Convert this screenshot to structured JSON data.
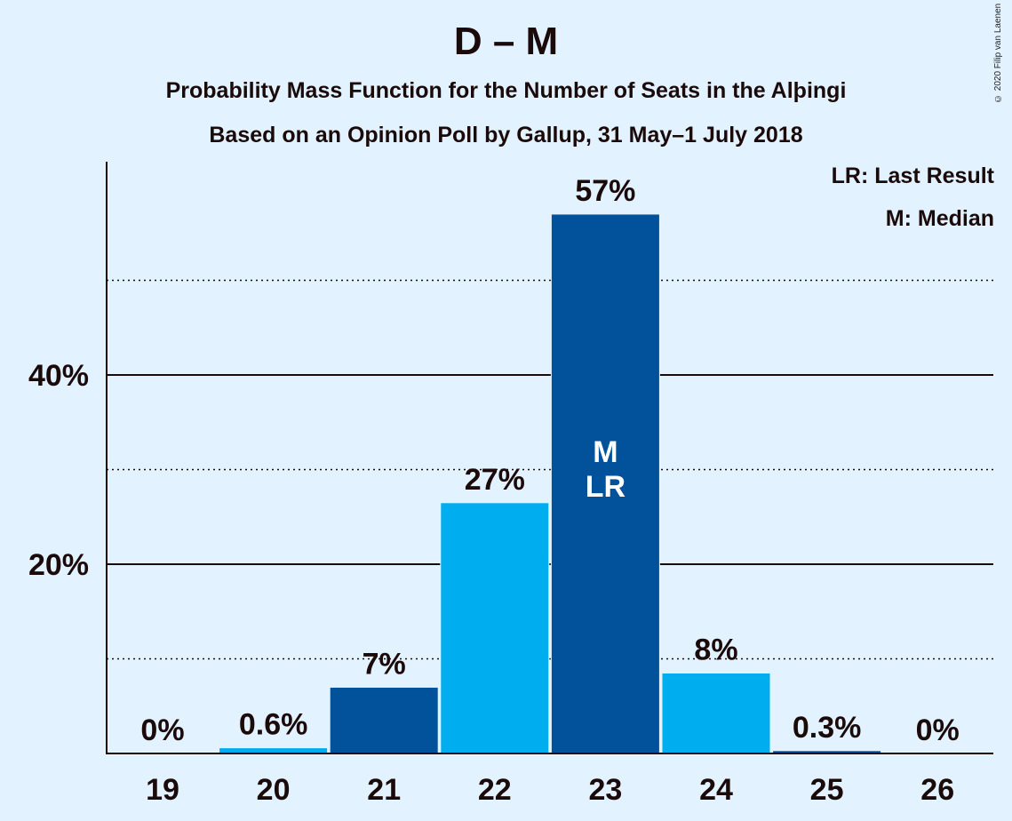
{
  "title": "D – M",
  "subtitle1": "Probability Mass Function for the Number of Seats in the Alþingi",
  "subtitle2": "Based on an Opinion Poll by Gallup, 31 May–1 July 2018",
  "copyright": "© 2020 Filip van Laenen",
  "legend": {
    "last_result": "LR: Last Result",
    "median": "M: Median"
  },
  "colors": {
    "background": "#e3f2ff",
    "dark_bar": "#01529b",
    "light_bar": "#00adef",
    "text": "#1a0a0a"
  },
  "chart_data": {
    "type": "bar",
    "categories": [
      "19",
      "20",
      "21",
      "22",
      "23",
      "24",
      "25",
      "26"
    ],
    "values": [
      0,
      0.6,
      7,
      26.5,
      57,
      8.5,
      0.3,
      0
    ],
    "data_labels": [
      "0%",
      "0.6%",
      "7%",
      "27%",
      "57%",
      "8%",
      "0.3%",
      "0%"
    ],
    "bar_styles": [
      "dark",
      "light",
      "dark",
      "light",
      "dark",
      "light",
      "dark",
      "light"
    ],
    "in_bar_labels": [
      "",
      "",
      "",
      "",
      "M\nLR",
      "",
      "",
      ""
    ],
    "ylim": [
      0,
      62
    ],
    "y_major_ticks": [
      20,
      40
    ],
    "y_tick_labels": [
      "20%",
      "40%"
    ],
    "y_minor_gridlines": [
      10,
      30,
      50
    ],
    "legend_position": "top-right"
  }
}
